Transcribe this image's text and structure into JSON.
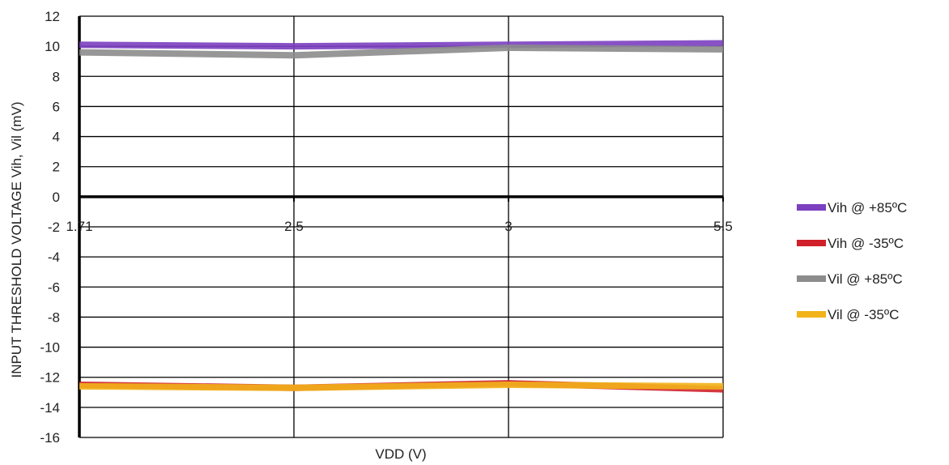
{
  "chart_data": {
    "type": "line",
    "title": "",
    "xlabel": "VDD (V)",
    "ylabel": "INPUT THRESHOLD VOLTAGE Vih, Vil (mV)",
    "categories": [
      "1.71",
      "2.5",
      "3",
      "5.5"
    ],
    "ylim": [
      -16,
      12
    ],
    "yticks": [
      12,
      10,
      8,
      6,
      4,
      2,
      0,
      -2,
      -4,
      -6,
      -8,
      -10,
      -12,
      -14,
      -16
    ],
    "grid": true,
    "legend_position": "right",
    "series": [
      {
        "name": "Vih @ +85ºC",
        "color": "#7B3FC0",
        "values": [
          10.1,
          10.0,
          10.1,
          10.2
        ]
      },
      {
        "name": "Vih @ -35ºC",
        "color": "#D0202A",
        "values": [
          -12.5,
          -12.7,
          -12.4,
          -12.8
        ]
      },
      {
        "name": "Vil @ +85ºC",
        "color": "#8C8C8C",
        "values": [
          9.6,
          9.4,
          9.9,
          9.8
        ]
      },
      {
        "name": "Vil @ -35ºC",
        "color": "#F2B21A",
        "values": [
          -12.6,
          -12.7,
          -12.5,
          -12.6
        ]
      }
    ]
  }
}
